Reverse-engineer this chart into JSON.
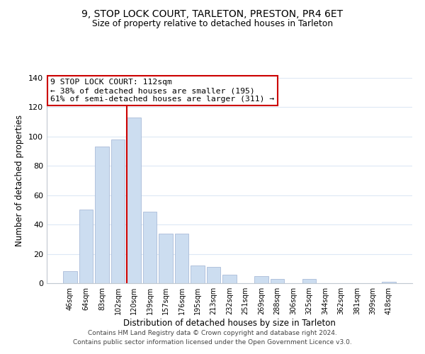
{
  "title": "9, STOP LOCK COURT, TARLETON, PRESTON, PR4 6ET",
  "subtitle": "Size of property relative to detached houses in Tarleton",
  "xlabel": "Distribution of detached houses by size in Tarleton",
  "ylabel": "Number of detached properties",
  "bar_labels": [
    "46sqm",
    "64sqm",
    "83sqm",
    "102sqm",
    "120sqm",
    "139sqm",
    "157sqm",
    "176sqm",
    "195sqm",
    "213sqm",
    "232sqm",
    "251sqm",
    "269sqm",
    "288sqm",
    "306sqm",
    "325sqm",
    "344sqm",
    "362sqm",
    "381sqm",
    "399sqm",
    "418sqm"
  ],
  "bar_values": [
    8,
    50,
    93,
    98,
    113,
    49,
    34,
    34,
    12,
    11,
    6,
    0,
    5,
    3,
    0,
    3,
    0,
    0,
    0,
    0,
    1
  ],
  "bar_color": "#ccddf0",
  "bar_edge_color": "#aabbd8",
  "vline_color": "#cc0000",
  "ylim": [
    0,
    140
  ],
  "yticks": [
    0,
    20,
    40,
    60,
    80,
    100,
    120,
    140
  ],
  "annotation_box_text_line1": "9 STOP LOCK COURT: 112sqm",
  "annotation_box_text_line2": "← 38% of detached houses are smaller (195)",
  "annotation_box_text_line3": "61% of semi-detached houses are larger (311) →",
  "annotation_box_edgecolor": "#cc0000",
  "annotation_box_facecolor": "#ffffff",
  "footer_line1": "Contains HM Land Registry data © Crown copyright and database right 2024.",
  "footer_line2": "Contains public sector information licensed under the Open Government Licence v3.0.",
  "background_color": "#ffffff",
  "grid_color": "#dde8f5"
}
